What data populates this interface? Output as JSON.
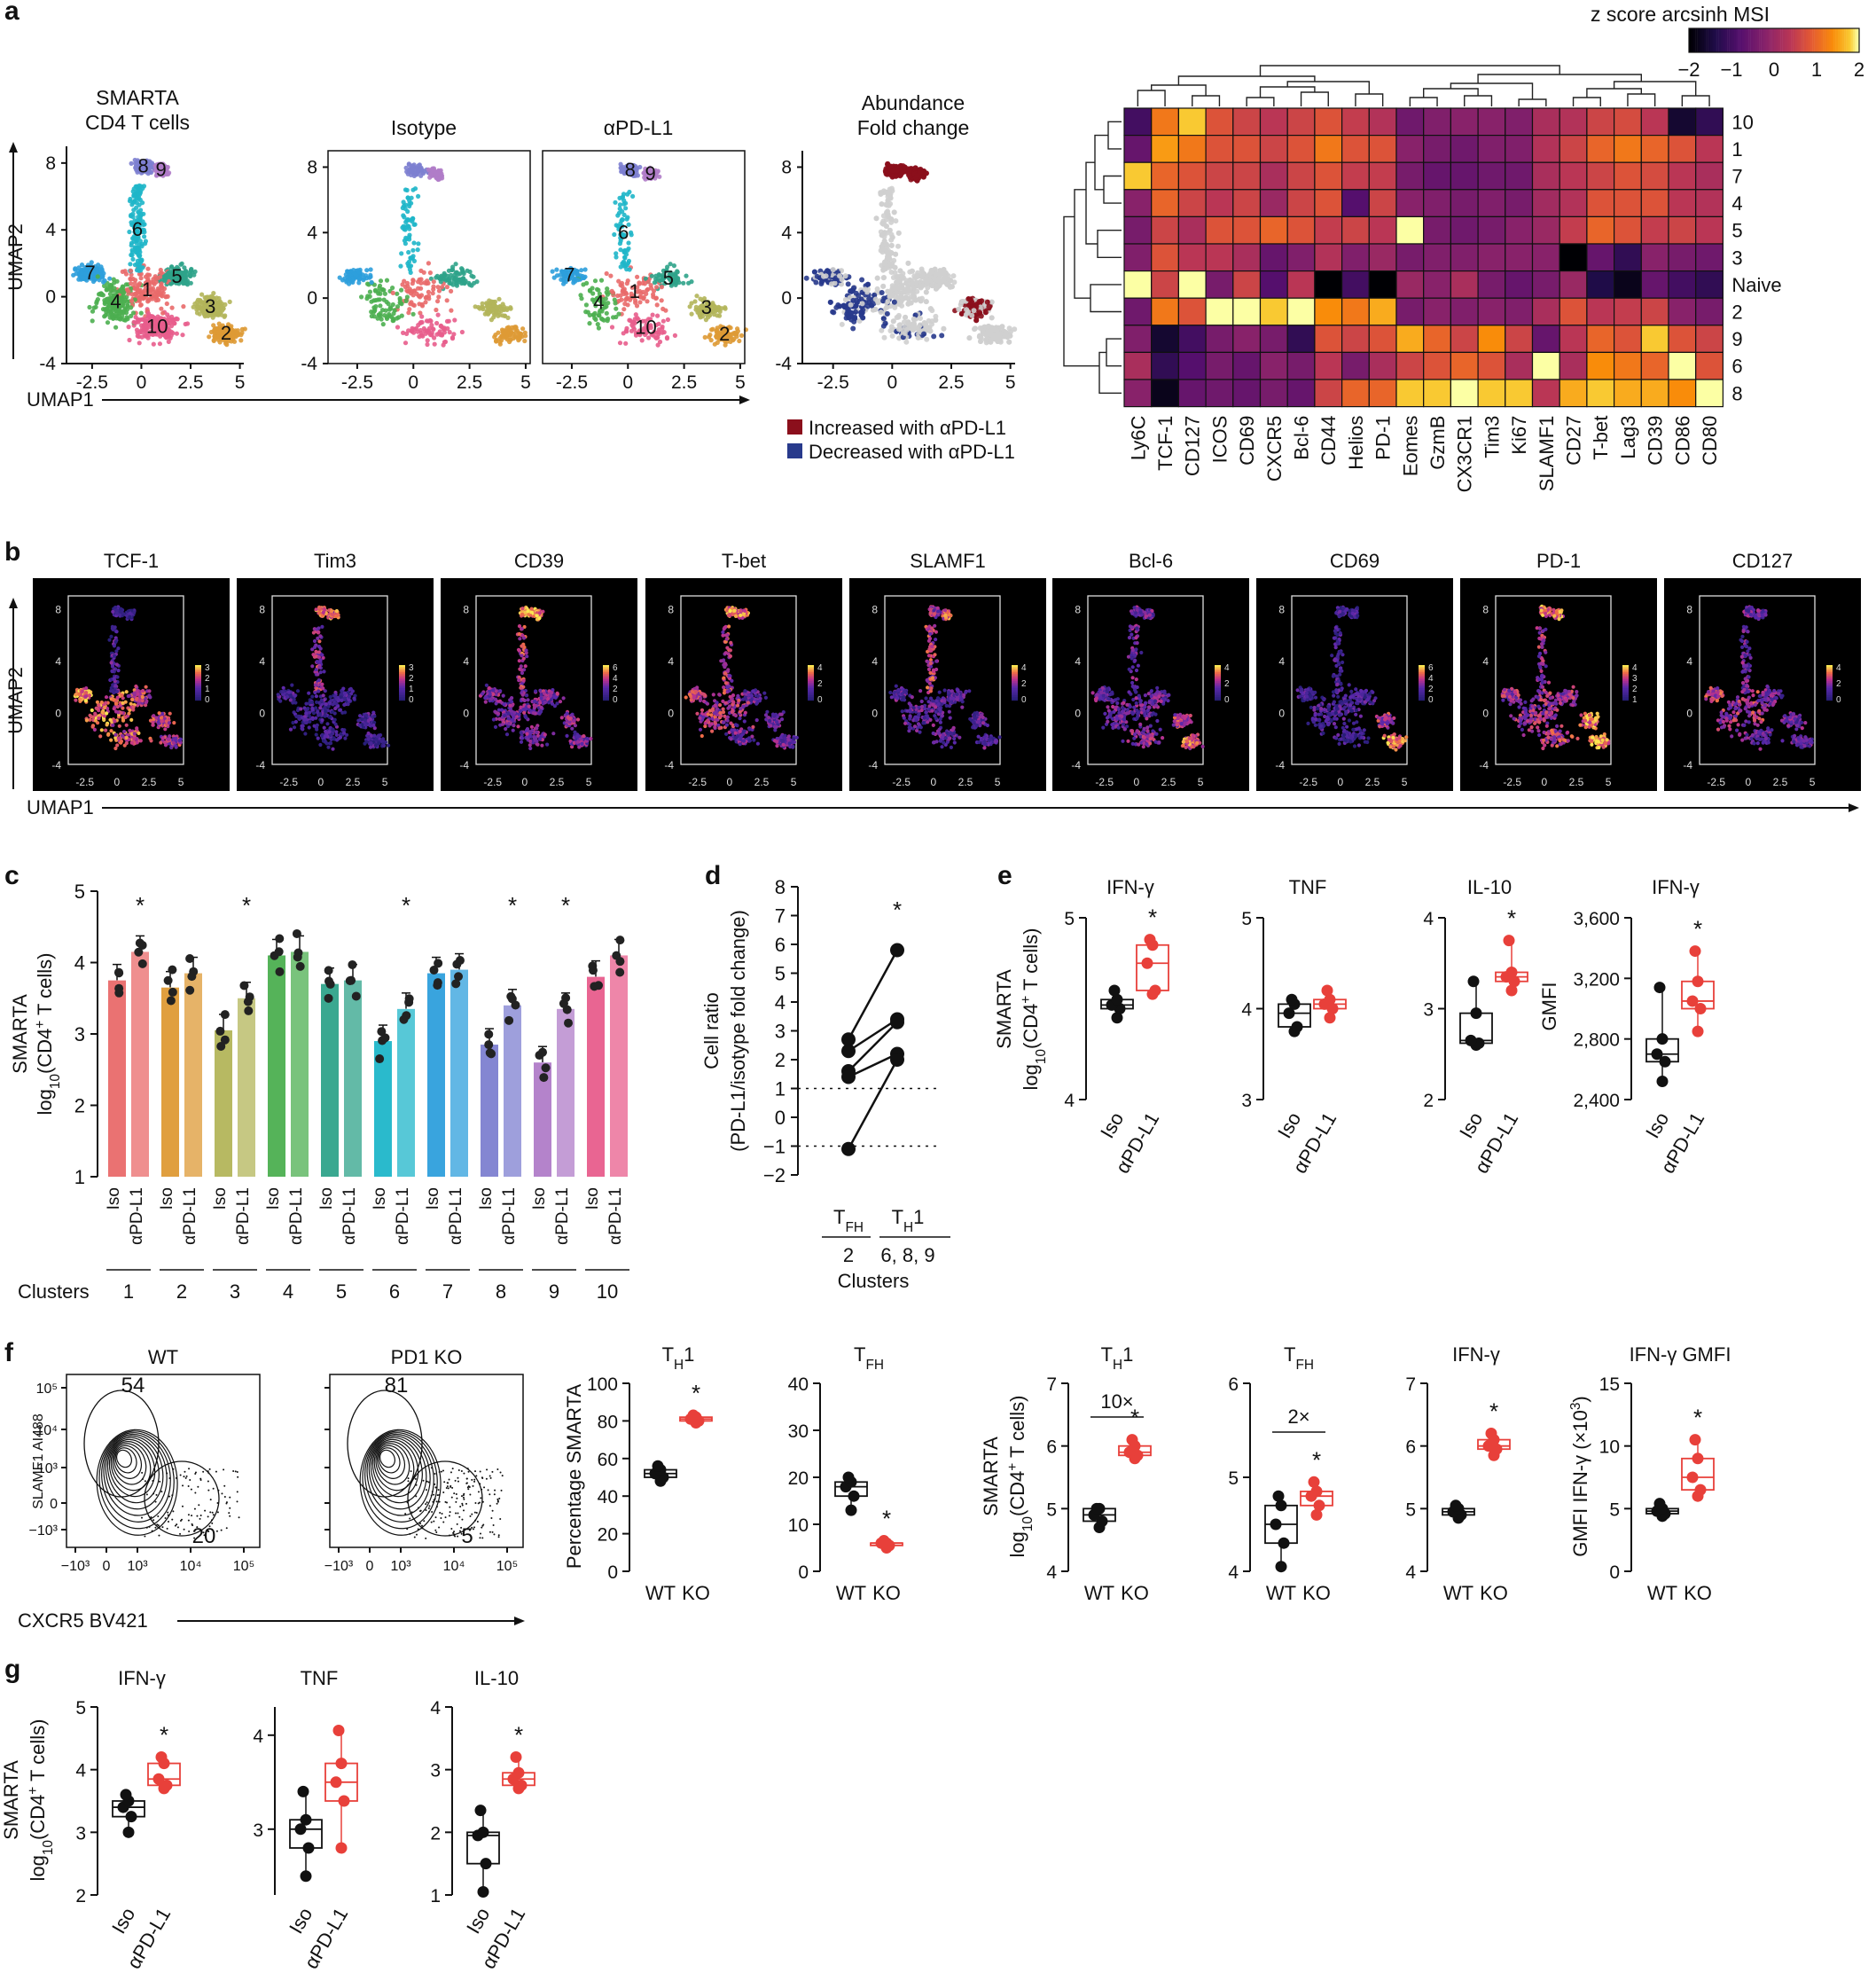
{
  "colors": {
    "accent_red": "#e8403a",
    "dark": "#111111",
    "increased": "#8b0f1c",
    "decreased": "#283a8c",
    "grey": "#cfcfcf",
    "clusters": {
      "1": "#e96a6a",
      "2": "#de9a35",
      "3": "#b3b55a",
      "4": "#4caf50",
      "5": "#2fa38a",
      "6": "#1fb6c9",
      "7": "#2e9fdc",
      "8": "#7d7fd0",
      "9": "#b07cc8",
      "10": "#e85d8c"
    }
  },
  "panel_a": {
    "letter": "a",
    "umap_main": {
      "title": "SMARTA\nCD4 T cells",
      "xlabel": "UMAP1",
      "ylabel": "UMAP2",
      "xticks": [
        "-2.5",
        "0",
        "2.5",
        "5"
      ],
      "yticks": [
        "-4",
        "0",
        "4",
        "8"
      ],
      "cluster_labels": [
        "1",
        "2",
        "3",
        "4",
        "5",
        "6",
        "7",
        "8",
        "9",
        "10"
      ]
    },
    "umap_iso": {
      "title": "Isotype",
      "xticks": [
        "-2.5",
        "0",
        "2.5",
        "5"
      ],
      "yticks": [
        "-4",
        "0",
        "4",
        "8"
      ]
    },
    "umap_apdl1": {
      "title": "αPD-L1",
      "xticks": [
        "-2.5",
        "0",
        "2.5",
        "5"
      ],
      "cluster_labels": [
        "1",
        "2",
        "3",
        "4",
        "5",
        "6",
        "7",
        "8",
        "9",
        "10"
      ]
    },
    "umap_fold": {
      "title": "Abundance\nFold change",
      "xticks": [
        "-2.5",
        "0",
        "2.5",
        "5"
      ],
      "yticks": [
        "-4",
        "0",
        "4",
        "8"
      ]
    },
    "legend": {
      "increased": "Increased with αPD-L1",
      "decreased": "Decreased with αPD-L1"
    }
  },
  "heatmap": {
    "colorbar_title": "z score arcsinh MSI",
    "colorbar_ticks": [
      "−2",
      "−1",
      "0",
      "1",
      "2"
    ],
    "markers": [
      "Ly6C",
      "TCF-1",
      "CD127",
      "ICOS",
      "CD69",
      "CXCR5",
      "Bcl-6",
      "CD44",
      "Helios",
      "PD-1",
      "Eomes",
      "GzmB",
      "CX3CR1",
      "Tim3",
      "Ki67",
      "SLAMF1",
      "CD27",
      "T-bet",
      "Lag3",
      "CD39",
      "CD86",
      "CD80"
    ],
    "rows": [
      "10",
      "1",
      "7",
      "4",
      "5",
      "3",
      "Naive",
      "2",
      "9",
      "6",
      "8"
    ],
    "values": [
      [
        -1.0,
        1.2,
        1.8,
        0.8,
        0.6,
        0.4,
        0.6,
        0.8,
        0.5,
        0.3,
        -0.5,
        -0.3,
        -0.2,
        -0.2,
        -0.3,
        0.2,
        0.3,
        0.6,
        0.7,
        0.4,
        -1.6,
        -1.2
      ],
      [
        -0.6,
        1.5,
        1.2,
        0.8,
        0.8,
        0.6,
        0.8,
        1.2,
        0.8,
        0.8,
        -0.2,
        -0.4,
        -0.5,
        -0.3,
        -0.3,
        0.3,
        0.6,
        1.0,
        1.2,
        1.0,
        0.8,
        0.4
      ],
      [
        1.8,
        1.0,
        0.8,
        0.6,
        0.6,
        0.2,
        0.6,
        0.8,
        0.5,
        0.5,
        -0.4,
        -0.6,
        -0.6,
        -0.5,
        -0.5,
        0.2,
        0.4,
        0.6,
        0.8,
        0.7,
        0.4,
        0.2
      ],
      [
        -0.2,
        1.0,
        0.6,
        0.4,
        0.6,
        0.0,
        0.6,
        0.8,
        -0.8,
        0.6,
        -0.2,
        -0.3,
        -0.4,
        -0.3,
        -0.4,
        0.1,
        0.3,
        0.8,
        0.8,
        0.8,
        0.4,
        0.3
      ],
      [
        -0.4,
        0.6,
        0.2,
        0.8,
        0.8,
        1.0,
        0.8,
        0.5,
        0.6,
        0.4,
        2.0,
        -0.4,
        -0.5,
        -0.4,
        -0.2,
        0.0,
        0.5,
        1.0,
        0.8,
        0.5,
        0.6,
        0.4
      ],
      [
        -0.3,
        0.8,
        0.4,
        0.4,
        0.2,
        -0.6,
        -0.3,
        0.3,
        -0.3,
        0.0,
        -0.4,
        -0.3,
        -0.3,
        -0.2,
        -0.2,
        -0.2,
        -2.0,
        -0.6,
        -1.2,
        -0.2,
        -0.4,
        -0.5
      ],
      [
        2.0,
        0.6,
        2.0,
        -0.4,
        0.6,
        -0.8,
        0.4,
        -2.0,
        -1.0,
        -2.0,
        0.0,
        -0.2,
        0.2,
        -0.4,
        -0.6,
        -0.4,
        0.0,
        -1.4,
        -1.8,
        -0.6,
        -1.0,
        -1.2
      ],
      [
        -0.5,
        1.2,
        0.8,
        2.0,
        2.0,
        1.8,
        2.0,
        1.4,
        1.2,
        1.6,
        -0.4,
        -0.2,
        -0.3,
        -0.2,
        -0.3,
        0.2,
        0.8,
        0.4,
        0.5,
        0.6,
        -0.2,
        -0.4
      ],
      [
        -0.3,
        -1.6,
        -1.0,
        -0.4,
        -0.2,
        -0.4,
        -1.2,
        0.8,
        0.6,
        0.8,
        1.6,
        1.0,
        0.6,
        1.4,
        0.6,
        -0.6,
        0.4,
        1.0,
        0.8,
        1.8,
        0.8,
        0.6
      ],
      [
        0.2,
        -1.2,
        -0.8,
        -0.4,
        -0.6,
        -0.2,
        -0.4,
        0.4,
        -0.4,
        0.2,
        0.6,
        0.8,
        1.0,
        0.8,
        0.2,
        2.0,
        0.2,
        1.4,
        1.2,
        1.0,
        2.0,
        0.8
      ],
      [
        -0.2,
        -1.8,
        -0.6,
        -0.5,
        -0.6,
        -0.4,
        -0.6,
        0.6,
        1.0,
        1.0,
        1.8,
        1.8,
        2.0,
        1.8,
        1.8,
        0.4,
        1.6,
        1.8,
        1.6,
        1.6,
        1.4,
        2.0
      ]
    ]
  },
  "panel_b": {
    "letter": "b",
    "markers": [
      "TCF-1",
      "Tim3",
      "CD39",
      "T-bet",
      "SLAMF1",
      "Bcl-6",
      "CD69",
      "PD-1",
      "CD127"
    ],
    "scale_labels": [
      [
        "3",
        "2",
        "1",
        "0"
      ],
      [
        "3",
        "2",
        "1",
        "0"
      ],
      [
        "6",
        "4",
        "2",
        "0"
      ],
      [
        "4",
        "2",
        "0"
      ],
      [
        "4",
        "2",
        "0"
      ],
      [
        "4",
        "2",
        "0"
      ],
      [
        "6",
        "4",
        "2",
        "0"
      ],
      [
        "4",
        "3",
        "2",
        "1"
      ],
      [
        "4",
        "2",
        "0"
      ]
    ],
    "xticks": [
      "-2.5",
      "0",
      "2.5",
      "5"
    ],
    "yticks": [
      "-4",
      "0",
      "4",
      "8"
    ],
    "xlabel": "UMAP1",
    "ylabel": "UMAP2"
  },
  "panel_c": {
    "letter": "c",
    "ylabel_1": "SMARTA",
    "ylabel_2": "log",
    "ylabel_2b": "10",
    "ylabel_2c": "(CD4",
    "ylabel_2d": "+",
    "ylabel_2e": " T cells)",
    "yticks": [
      "1",
      "2",
      "3",
      "4",
      "5"
    ],
    "group_labels": [
      "Iso",
      "αPD-L1"
    ],
    "clusters_label": "Clusters",
    "chart_data": {
      "type": "bar",
      "categories": [
        "1",
        "2",
        "3",
        "4",
        "5",
        "6",
        "7",
        "8",
        "9",
        "10"
      ],
      "series": [
        {
          "name": "Iso",
          "values": [
            3.75,
            3.65,
            3.05,
            4.1,
            3.7,
            2.9,
            3.85,
            2.85,
            2.6,
            3.8
          ]
        },
        {
          "name": "αPD-L1",
          "values": [
            4.15,
            3.85,
            3.5,
            4.15,
            3.75,
            3.35,
            3.9,
            3.4,
            3.35,
            4.1
          ]
        }
      ],
      "significant": [
        "1",
        "3",
        "6",
        "8",
        "9"
      ],
      "ylim": [
        1,
        5
      ]
    }
  },
  "panel_d": {
    "letter": "d",
    "ylabel": "Cell ratio",
    "ylabel2": "(PD-L1/isotype fold change)",
    "yticks": [
      "−2",
      "−1",
      "0",
      "1",
      "2",
      "3",
      "4",
      "5",
      "6",
      "7",
      "8"
    ],
    "group1_main": "T",
    "group1_sub": "FH",
    "group1_clusters": "2",
    "group2_main": "T",
    "group2_sub": "H",
    "group2_tail": "1",
    "group2_clusters": "6, 8, 9",
    "xlabel": "Clusters",
    "chart_data": {
      "type": "line",
      "x": [
        "TFH",
        "TH1"
      ],
      "series": [
        {
          "name": "m1",
          "values": [
            2.7,
            5.8
          ]
        },
        {
          "name": "m2",
          "values": [
            2.3,
            3.4
          ]
        },
        {
          "name": "m3",
          "values": [
            1.6,
            3.3
          ]
        },
        {
          "name": "m4",
          "values": [
            1.4,
            2.2
          ]
        },
        {
          "name": "m5",
          "values": [
            -1.1,
            2.0
          ]
        }
      ],
      "ylim": [
        -2,
        8
      ]
    }
  },
  "panel_e": {
    "letter": "e",
    "ylabel_main": "SMARTA",
    "ylabel_log": "log",
    "ylabel_sub": "10",
    "ylabel_rest": "(CD4",
    "ylabel_sup": "+",
    "ylabel_end": " T cells)",
    "plots": [
      {
        "title": "IFN-γ",
        "yticks": [
          "4",
          "5"
        ],
        "ylim": [
          4,
          5
        ],
        "iso": [
          4.45,
          4.5,
          4.52,
          4.55,
          4.6
        ],
        "trt": [
          4.58,
          4.6,
          4.75,
          4.85,
          4.88
        ],
        "star": "*",
        "ylabel": ""
      },
      {
        "title": "TNF",
        "yticks": [
          "3",
          "4",
          "5"
        ],
        "ylim": [
          3,
          5
        ],
        "iso": [
          3.75,
          3.8,
          3.95,
          4.05,
          4.1
        ],
        "trt": [
          3.9,
          4.0,
          4.05,
          4.1,
          4.2
        ],
        "star": "",
        "ylabel": ""
      },
      {
        "title": "IL-10",
        "yticks": [
          "2",
          "3",
          "4"
        ],
        "ylim": [
          2,
          4
        ],
        "iso": [
          2.6,
          2.62,
          2.65,
          2.95,
          3.3
        ],
        "trt": [
          3.2,
          3.3,
          3.35,
          3.4,
          3.75
        ],
        "star": "*",
        "ylabel": ""
      },
      {
        "title": "IFN-γ",
        "yticks": [
          "2,400",
          "2,800",
          "3,200",
          "3,600"
        ],
        "ylim": [
          2400,
          3600
        ],
        "iso": [
          2520,
          2650,
          2700,
          2800,
          3140
        ],
        "trt": [
          2850,
          3000,
          3050,
          3180,
          3380
        ],
        "star": "*",
        "ylabel": "GMFI"
      }
    ],
    "xlabels": [
      "Iso",
      "αPD-L1"
    ]
  },
  "panel_f": {
    "letter": "f",
    "flow": [
      {
        "title": "WT",
        "gate_top": "54",
        "gate_bottom": "20"
      },
      {
        "title": "PD1 KO",
        "gate_top": "81",
        "gate_bottom": "5"
      }
    ],
    "flow_ylabel": "SLAMF1 AI488",
    "flow_xlabel": "CXCR5 BV421",
    "flow_yticks": [
      "10⁵",
      "10⁴",
      "10³",
      "0",
      "−10³"
    ],
    "flow_xticks": [
      "−10³",
      "0",
      "10³",
      "10⁴",
      "10⁵"
    ],
    "pct_ylabel": "Percentage SMARTA",
    "log_ylabel_main": "SMARTA",
    "log_ylabel_log": "log",
    "log_ylabel_sub": "10",
    "log_ylabel_rest": "(CD4",
    "log_ylabel_sup": "+",
    "log_ylabel_end": " T cells)",
    "gmfi_ylabel": "GMFI IFN-γ (×10",
    "gmfi_ylabel_sup": "3",
    "gmfi_ylabel_end": ")",
    "xlabels": [
      "WT",
      "KO"
    ],
    "plots": [
      {
        "title": "T",
        "title_sub": "H",
        "title_tail": "1",
        "yticks": [
          "0",
          "20",
          "40",
          "60",
          "80",
          "100"
        ],
        "ylim": [
          0,
          100
        ],
        "wt": [
          48,
          50,
          52,
          54,
          56
        ],
        "ko": [
          79,
          80,
          81,
          82,
          83
        ],
        "star": "*",
        "bracket": ""
      },
      {
        "title": "T",
        "title_sub": "FH",
        "title_tail": "",
        "yticks": [
          "0",
          "10",
          "20",
          "30",
          "40"
        ],
        "ylim": [
          0,
          40
        ],
        "wt": [
          13,
          16,
          18,
          19,
          20
        ],
        "ko": [
          5,
          5.5,
          6,
          6,
          6.5
        ],
        "star": "*",
        "bracket": ""
      },
      {
        "title": "T",
        "title_sub": "H",
        "title_tail": "1",
        "yticks": [
          "4",
          "5",
          "6",
          "7"
        ],
        "ylim": [
          4,
          7
        ],
        "wt": [
          4.7,
          4.8,
          4.9,
          5.0,
          5.0
        ],
        "ko": [
          5.8,
          5.85,
          5.9,
          6.0,
          6.1
        ],
        "star": "*",
        "bracket": "10×"
      },
      {
        "title": "T",
        "title_sub": "FH",
        "title_tail": "",
        "yticks": [
          "4",
          "5",
          "6"
        ],
        "ylim": [
          4,
          6
        ],
        "wt": [
          4.05,
          4.3,
          4.5,
          4.7,
          4.8
        ],
        "ko": [
          4.6,
          4.7,
          4.8,
          4.85,
          4.95
        ],
        "star": "*",
        "bracket": "2×"
      },
      {
        "title": "IFN-γ",
        "title_sub": "",
        "title_tail": "",
        "yticks": [
          "4",
          "5",
          "6",
          "7"
        ],
        "ylim": [
          4,
          7
        ],
        "wt": [
          4.85,
          4.9,
          4.95,
          5.0,
          5.05
        ],
        "ko": [
          5.85,
          5.95,
          6.0,
          6.1,
          6.2
        ],
        "star": "*",
        "bracket": ""
      },
      {
        "title": "IFN-γ GMFI",
        "title_sub": "",
        "title_tail": "",
        "yticks": [
          "0",
          "5",
          "10",
          "15"
        ],
        "ylim": [
          0,
          15
        ],
        "wt": [
          4.4,
          4.6,
          4.8,
          5.0,
          5.4
        ],
        "ko": [
          6.0,
          6.5,
          7.5,
          9.0,
          10.5
        ],
        "star": "*",
        "bracket": ""
      }
    ]
  },
  "panel_g": {
    "letter": "g",
    "ylabel_main": "SMARTA",
    "ylabel_log": "log",
    "ylabel_sub": "10",
    "ylabel_rest": "(CD4",
    "ylabel_sup": "+",
    "ylabel_end": " T cells)",
    "xlabels": [
      "Iso",
      "αPD-L1"
    ],
    "plots": [
      {
        "title": "IFN-γ",
        "yticks": [
          "2",
          "3",
          "4",
          "5"
        ],
        "ylim": [
          2,
          5
        ],
        "iso": [
          3.0,
          3.25,
          3.4,
          3.5,
          3.6
        ],
        "trt": [
          3.7,
          3.75,
          3.85,
          4.1,
          4.2
        ],
        "star": "*"
      },
      {
        "title": "TNF",
        "yticks": [
          "3",
          "4"
        ],
        "ylim": [
          2.3,
          4.3
        ],
        "iso": [
          2.5,
          2.8,
          3.0,
          3.1,
          3.4
        ],
        "trt": [
          2.8,
          3.3,
          3.5,
          3.7,
          4.05
        ],
        "star": ""
      },
      {
        "title": "IL-10",
        "yticks": [
          "1",
          "2",
          "3",
          "4"
        ],
        "ylim": [
          1,
          4
        ],
        "iso": [
          1.05,
          1.5,
          1.95,
          2.0,
          2.35
        ],
        "trt": [
          2.7,
          2.75,
          2.85,
          2.95,
          3.2
        ],
        "star": "*"
      }
    ]
  }
}
